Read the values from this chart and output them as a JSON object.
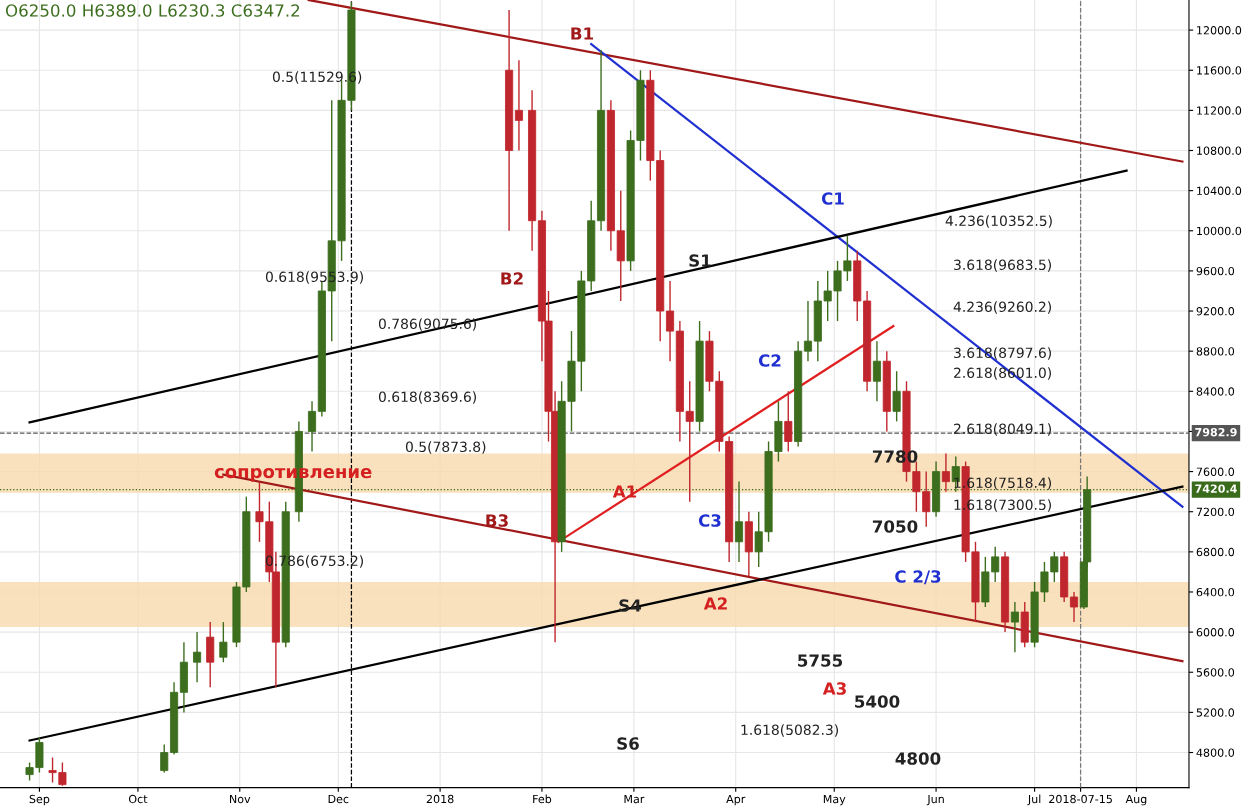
{
  "chart_data": {
    "type": "candlestick",
    "x": [
      "2017-08-29",
      "2017-09-01",
      "2017-09-05",
      "2017-09-08",
      "2017-10-09",
      "2017-10-12",
      "2017-10-15",
      "2017-10-19",
      "2017-10-23",
      "2017-10-27",
      "2017-10-31",
      "2017-11-03",
      "2017-11-07",
      "2017-11-10",
      "2017-11-12",
      "2017-11-15",
      "2017-11-19",
      "2017-11-23",
      "2017-11-26",
      "2017-11-29",
      "2017-12-02",
      "2017-12-05",
      "2018-01-22",
      "2018-01-25",
      "2018-01-29",
      "2018-02-01",
      "2018-02-03",
      "2018-02-05",
      "2018-02-07",
      "2018-02-10",
      "2018-02-13",
      "2018-02-16",
      "2018-02-19",
      "2018-02-22",
      "2018-02-25",
      "2018-02-28",
      "2018-03-03",
      "2018-03-06",
      "2018-03-09",
      "2018-03-12",
      "2018-03-15",
      "2018-03-18",
      "2018-03-21",
      "2018-03-24",
      "2018-03-27",
      "2018-03-30",
      "2018-04-02",
      "2018-04-05",
      "2018-04-08",
      "2018-04-11",
      "2018-04-14",
      "2018-04-17",
      "2018-04-20",
      "2018-04-23",
      "2018-04-26",
      "2018-04-29",
      "2018-05-02",
      "2018-05-05",
      "2018-05-08",
      "2018-05-11",
      "2018-05-14",
      "2018-05-17",
      "2018-05-20",
      "2018-05-23",
      "2018-05-26",
      "2018-05-29",
      "2018-06-01",
      "2018-06-04",
      "2018-06-07",
      "2018-06-10",
      "2018-06-13",
      "2018-06-16",
      "2018-06-19",
      "2018-06-22",
      "2018-06-25",
      "2018-06-28",
      "2018-07-01",
      "2018-07-04",
      "2018-07-07",
      "2018-07-10",
      "2018-07-13",
      "2018-07-16",
      "2018-07-17"
    ],
    "ohlc": [
      [
        4580,
        4700,
        4520,
        4650
      ],
      [
        4650,
        4950,
        4600,
        4900
      ],
      [
        4620,
        4750,
        4500,
        4600
      ],
      [
        4600,
        4700,
        4470,
        4480
      ],
      [
        4620,
        4880,
        4600,
        4800
      ],
      [
        4800,
        5500,
        4780,
        5400
      ],
      [
        5400,
        5900,
        5200,
        5700
      ],
      [
        5700,
        6000,
        5500,
        5800
      ],
      [
        5950,
        6100,
        5450,
        5700
      ],
      [
        5750,
        6100,
        5700,
        5900
      ],
      [
        5900,
        6500,
        5850,
        6450
      ],
      [
        6450,
        7350,
        6400,
        7200
      ],
      [
        7200,
        7500,
        6900,
        7100
      ],
      [
        7100,
        7300,
        6500,
        6600
      ],
      [
        6600,
        6800,
        5450,
        5900
      ],
      [
        5900,
        7300,
        5850,
        7200
      ],
      [
        7200,
        8100,
        7100,
        8000
      ],
      [
        8000,
        8300,
        7800,
        8200
      ],
      [
        8200,
        9500,
        8150,
        9400
      ],
      [
        9400,
        11300,
        8900,
        9900
      ],
      [
        9900,
        11500,
        9700,
        11300
      ],
      [
        11300,
        12280,
        11200,
        12200
      ],
      [
        11600,
        12200,
        10000,
        10800
      ],
      [
        11200,
        11700,
        10800,
        11100
      ],
      [
        11200,
        11400,
        9800,
        10100
      ],
      [
        10100,
        10200,
        8700,
        9100
      ],
      [
        9100,
        9400,
        7900,
        8200
      ],
      [
        8200,
        8400,
        5900,
        6900
      ],
      [
        6900,
        8500,
        6800,
        8300
      ],
      [
        8300,
        9000,
        8000,
        8700
      ],
      [
        8700,
        9600,
        8400,
        9500
      ],
      [
        9500,
        10300,
        9400,
        10100
      ],
      [
        10100,
        11800,
        10000,
        11200
      ],
      [
        11200,
        11300,
        9800,
        10000
      ],
      [
        10000,
        10400,
        9300,
        9700
      ],
      [
        9700,
        11000,
        9600,
        10900
      ],
      [
        10900,
        11600,
        10700,
        11500
      ],
      [
        11500,
        11600,
        10500,
        10700
      ],
      [
        10700,
        10800,
        8900,
        9200
      ],
      [
        9200,
        9500,
        8700,
        9000
      ],
      [
        9000,
        9100,
        7900,
        8200
      ],
      [
        8200,
        8500,
        7300,
        8100
      ],
      [
        8100,
        9100,
        8000,
        8900
      ],
      [
        8900,
        9000,
        8400,
        8500
      ],
      [
        8500,
        8600,
        7800,
        7900
      ],
      [
        7900,
        7950,
        6700,
        6900
      ],
      [
        6900,
        7500,
        6700,
        7100
      ],
      [
        7100,
        7200,
        6550,
        6800
      ],
      [
        6800,
        7200,
        6650,
        7000
      ],
      [
        7000,
        7900,
        6900,
        7800
      ],
      [
        7800,
        8300,
        7700,
        8100
      ],
      [
        8100,
        8400,
        7800,
        7900
      ],
      [
        7900,
        8900,
        7850,
        8800
      ],
      [
        8800,
        9300,
        8700,
        8900
      ],
      [
        8900,
        9500,
        8700,
        9300
      ],
      [
        9300,
        9600,
        9100,
        9400
      ],
      [
        9400,
        9700,
        9100,
        9600
      ],
      [
        9600,
        9950,
        9500,
        9700
      ],
      [
        9700,
        9800,
        9100,
        9300
      ],
      [
        9300,
        9400,
        8400,
        8500
      ],
      [
        8500,
        8900,
        8300,
        8700
      ],
      [
        8700,
        8800,
        8000,
        8200
      ],
      [
        8200,
        8600,
        8100,
        8400
      ],
      [
        8400,
        8500,
        7500,
        7600
      ],
      [
        7600,
        7700,
        7200,
        7400
      ],
      [
        7400,
        7600,
        7050,
        7200
      ],
      [
        7200,
        7700,
        7150,
        7600
      ],
      [
        7600,
        7780,
        7400,
        7500
      ],
      [
        7500,
        7750,
        7400,
        7650
      ],
      [
        7650,
        7700,
        6700,
        6800
      ],
      [
        6800,
        6900,
        6100,
        6300
      ],
      [
        6300,
        6750,
        6250,
        6600
      ],
      [
        6600,
        6850,
        6500,
        6750
      ],
      [
        6750,
        6800,
        6000,
        6100
      ],
      [
        6100,
        6300,
        5800,
        6200
      ],
      [
        6200,
        6300,
        5850,
        5900
      ],
      [
        5900,
        6500,
        5850,
        6400
      ],
      [
        6400,
        6700,
        6300,
        6600
      ],
      [
        6600,
        6800,
        6500,
        6750
      ],
      [
        6750,
        6800,
        6300,
        6350
      ],
      [
        6350,
        6400,
        6100,
        6250
      ],
      [
        6250,
        6750,
        6230,
        6700
      ],
      [
        6700,
        7550,
        6650,
        7420
      ]
    ],
    "series": [
      {
        "type": "line",
        "color": "#a01818",
        "x": [
          "2017-11-22",
          "2018-08-15"
        ],
        "values": [
          12300,
          10690
        ]
      },
      {
        "type": "line",
        "color": "#1f2fd0",
        "x": [
          "2018-02-16",
          "2018-08-15"
        ],
        "values": [
          11860,
          7250
        ]
      },
      {
        "type": "line",
        "color": "#000000",
        "x": [
          "2017-08-29",
          "2018-07-29"
        ],
        "values": [
          8090,
          10600
        ]
      },
      {
        "type": "line",
        "color": "#a01818",
        "x": [
          "2017-10-27",
          "2018-08-15"
        ],
        "values": [
          7570,
          5710
        ]
      },
      {
        "type": "line",
        "color": "#e02020",
        "x": [
          "2018-02-06",
          "2018-05-19"
        ],
        "values": [
          6900,
          9050
        ]
      },
      {
        "type": "line",
        "color": "#000000",
        "x": [
          "2017-08-29",
          "2018-08-15"
        ],
        "values": [
          4920,
          7450
        ]
      }
    ],
    "xlim": [
      "2017-08-20",
      "2018-08-17"
    ],
    "xticks": [
      {
        "value": "2017-09-01",
        "label": "Sep"
      },
      {
        "value": "2017-10-01",
        "label": "Oct"
      },
      {
        "value": "2017-11-01",
        "label": "Nov"
      },
      {
        "value": "2017-12-01",
        "label": "Dec"
      },
      {
        "value": "2018-01-01",
        "label": "2018"
      },
      {
        "value": "2018-02-01",
        "label": "Feb"
      },
      {
        "value": "2018-03-01",
        "label": "Mar"
      },
      {
        "value": "2018-04-01",
        "label": "Apr"
      },
      {
        "value": "2018-05-01",
        "label": "May"
      },
      {
        "value": "2018-06-01",
        "label": "Jun"
      },
      {
        "value": "2018-07-01",
        "label": "Jul"
      },
      {
        "value": "2018-07-15",
        "label": "2018-07-15"
      },
      {
        "value": "2018-08-01",
        "label": "Aug"
      }
    ],
    "ylim": [
      4450,
      12300
    ],
    "yticks": [
      {
        "value": 4800,
        "label": "4800.0"
      },
      {
        "value": 5200,
        "label": "5200.0"
      },
      {
        "value": 5600,
        "label": "5600.0"
      },
      {
        "value": 6000,
        "label": "6000.0"
      },
      {
        "value": 6400,
        "label": "6400.0"
      },
      {
        "value": 6800,
        "label": "6800.0"
      },
      {
        "value": 7200,
        "label": "7200.0"
      },
      {
        "value": 7600,
        "label": "7600.0"
      },
      {
        "value": 8000,
        "label": null
      },
      {
        "value": 8400,
        "label": "8400.0"
      },
      {
        "value": 8800,
        "label": "8800.0"
      },
      {
        "value": 9200,
        "label": "9200.0"
      },
      {
        "value": 9600,
        "label": "9600.0"
      },
      {
        "value": 10000,
        "label": "10000.0"
      },
      {
        "value": 10400,
        "label": "10400.0"
      },
      {
        "value": 10800,
        "label": "10800.0"
      },
      {
        "value": 11200,
        "label": "11200.0"
      },
      {
        "value": 11600,
        "label": "11600.0"
      },
      {
        "value": 12000,
        "label": "12000.0"
      }
    ],
    "grid": true,
    "bands": [
      {
        "axis": "y",
        "from": 7390,
        "to": 7780,
        "label": "сопротивление",
        "color": "#f8d9ad"
      },
      {
        "axis": "y",
        "from": 6050,
        "to": 6500,
        "color": "#f8d9ad"
      }
    ],
    "ref_lines": [
      {
        "axis": "y",
        "value": 7982.9,
        "label": "7982.9",
        "color": "#555555",
        "line_style": "dashed"
      },
      {
        "axis": "y",
        "value": 7420.4,
        "label": "7420.4",
        "color": "#3a6b1c",
        "line_style": "dotted"
      },
      {
        "axis": "x",
        "value": "2017-12-05",
        "color": "#000000",
        "line_style": "dashed"
      },
      {
        "axis": "x",
        "value": "2018-07-15",
        "color": "#777777",
        "line_style": "dashed"
      }
    ],
    "annotations": [
      "O6250.0 H6389.0 L6230.3 C6347.2",
      "0.5(11529.6)",
      "0.618(9553.9)",
      "0.786(9075.6)",
      "0.618(8369.6)",
      "0.5(7873.8)",
      "0.786(6753.2)",
      "4.236(10352.5)",
      "3.618(9683.5)",
      "4.236(9260.2)",
      "3.618(8797.6)",
      "2.618(8601.0)",
      "2.618(8049.1)",
      "1.618(7518.4)",
      "1.618(7300.5)",
      "1.618(5082.3)",
      "B1",
      "B2",
      "B3",
      "C1",
      "C2",
      "C3",
      "C 2/3",
      "S1",
      "S4",
      "S6",
      "A1",
      "A2",
      "A3",
      "7780",
      "7050",
      "5755",
      "5400",
      "4800"
    ]
  }
}
